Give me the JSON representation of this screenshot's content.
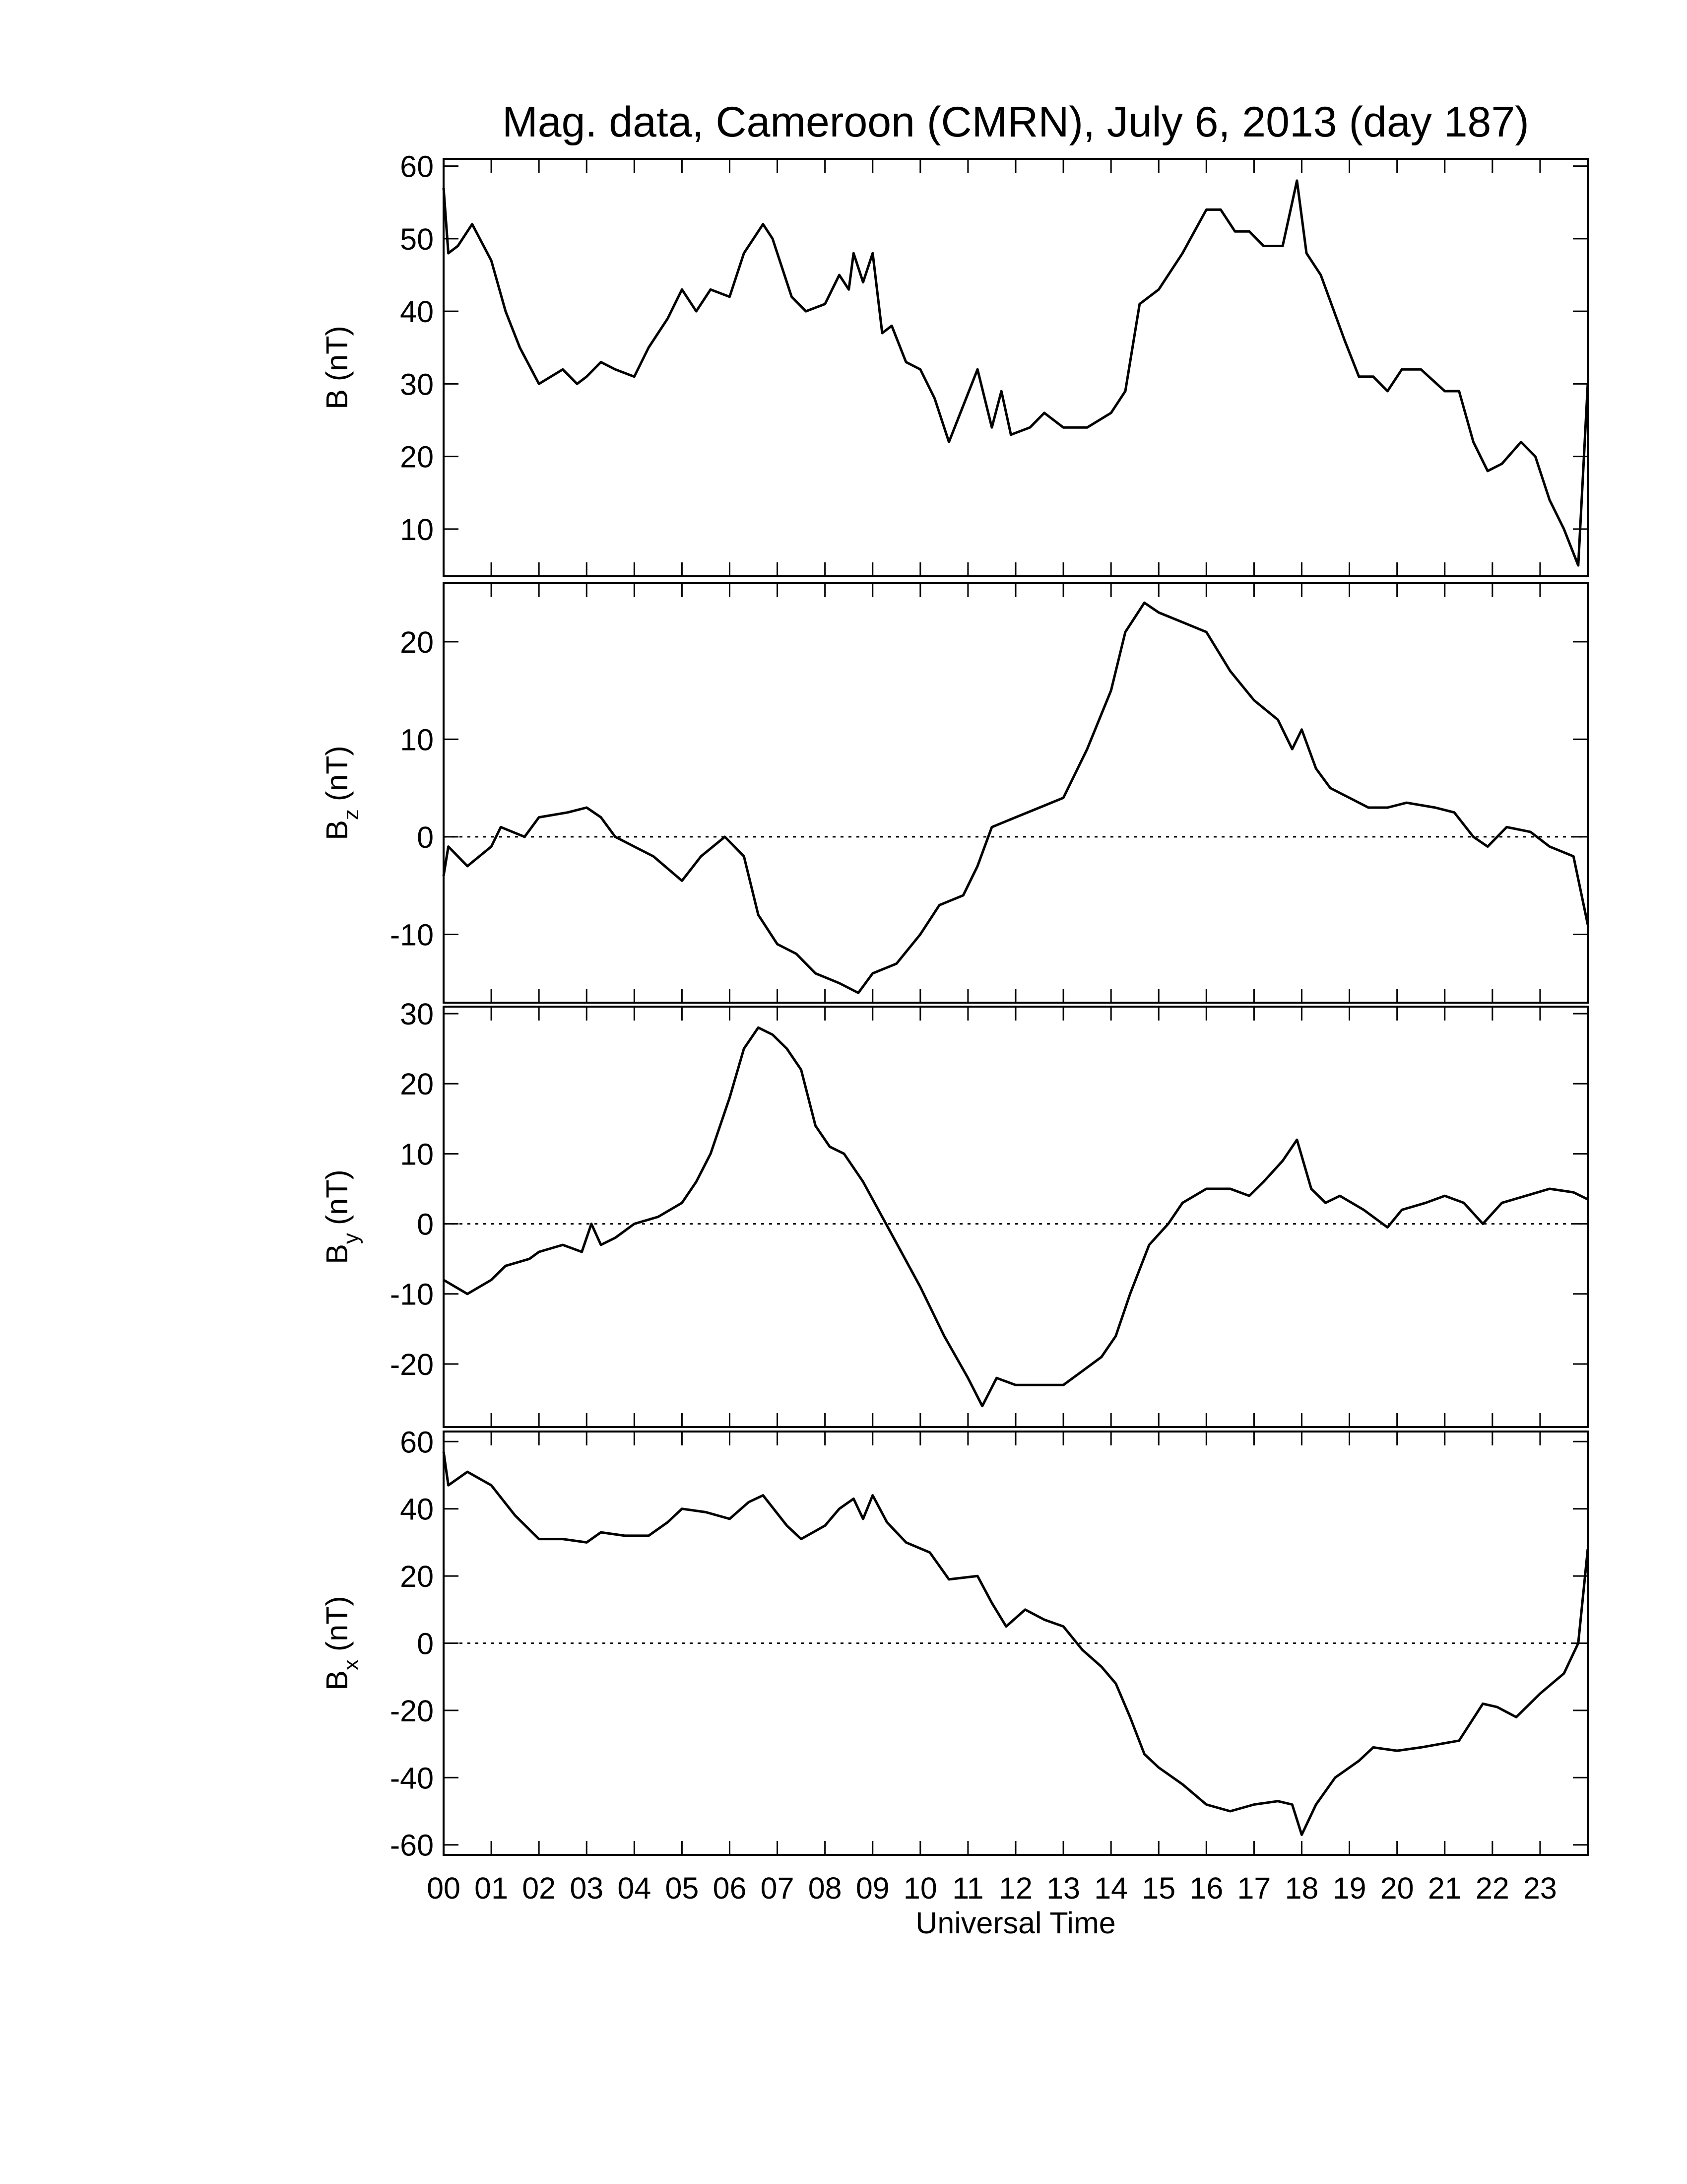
{
  "chart_data": [
    {
      "type": "line",
      "title": "Mag. data, Cameroon (CMRN), July 6, 2013 (day 187)",
      "ylabel": {
        "symbol": "B",
        "unit": "(nT)"
      },
      "xlim": [
        0,
        24
      ],
      "ylim": [
        3.5,
        61
      ],
      "yticks": [
        10,
        20,
        30,
        40,
        50,
        60
      ],
      "zero_line": false,
      "color": "#000000",
      "x": [
        0,
        0.1,
        0.3,
        0.6,
        1,
        1.3,
        1.6,
        2,
        2.5,
        2.8,
        3,
        3.3,
        3.6,
        4,
        4.3,
        4.7,
        5,
        5.3,
        5.6,
        6,
        6.3,
        6.7,
        6.9,
        7.3,
        7.6,
        8,
        8.3,
        8.5,
        8.6,
        8.8,
        9,
        9.2,
        9.4,
        9.7,
        10,
        10.3,
        10.6,
        10.9,
        11.2,
        11.5,
        11.7,
        11.9,
        12.3,
        12.6,
        13,
        13.5,
        14,
        14.3,
        14.6,
        15,
        15.5,
        16,
        16.3,
        16.6,
        16.9,
        17.2,
        17.6,
        17.8,
        17.9,
        18.1,
        18.4,
        18.9,
        19.2,
        19.5,
        19.8,
        20.1,
        20.5,
        21,
        21.3,
        21.6,
        21.9,
        22.2,
        22.6,
        22.9,
        23.2,
        23.5,
        23.8,
        24
      ],
      "values": [
        57,
        48,
        49,
        52,
        47,
        40,
        35,
        30,
        32,
        30,
        31,
        33,
        32,
        31,
        35,
        39,
        43,
        40,
        43,
        42,
        48,
        52,
        50,
        42,
        40,
        41,
        45,
        43,
        48,
        44,
        48,
        37,
        38,
        33,
        32,
        28,
        22,
        27,
        32,
        24,
        29,
        23,
        24,
        26,
        24,
        24,
        26,
        29,
        41,
        43,
        48,
        54,
        54,
        51,
        51,
        49,
        49,
        55,
        58,
        48,
        45,
        36,
        31,
        31,
        29,
        32,
        32,
        29,
        29,
        22,
        18,
        19,
        22,
        20,
        14,
        10,
        5,
        30
      ]
    },
    {
      "type": "line",
      "ylabel": {
        "symbol": "B",
        "subscript": "z",
        "unit": "(nT)"
      },
      "xlim": [
        0,
        24
      ],
      "ylim": [
        -17,
        26
      ],
      "yticks": [
        -10,
        0,
        10,
        20
      ],
      "zero_line": true,
      "color": "#000000",
      "x": [
        0,
        0.1,
        0.5,
        1,
        1.2,
        1.7,
        2,
        2.6,
        3,
        3.3,
        3.6,
        4,
        4.4,
        5,
        5.4,
        5.9,
        6.3,
        6.6,
        7,
        7.4,
        7.8,
        8.3,
        8.7,
        9,
        9.5,
        10,
        10.4,
        10.9,
        11.2,
        11.5,
        12,
        12.5,
        13,
        13.5,
        14,
        14.3,
        14.7,
        15,
        15.5,
        16,
        16.5,
        17,
        17.5,
        17.8,
        18,
        18.3,
        18.6,
        19,
        19.4,
        19.8,
        20.2,
        20.8,
        21.2,
        21.6,
        21.9,
        22.3,
        22.8,
        23.2,
        23.7,
        24
      ],
      "values": [
        -4,
        -1,
        -3,
        -1,
        1,
        0,
        2,
        2.5,
        3,
        2,
        0,
        -1,
        -2,
        -4.5,
        -2,
        0,
        -2,
        -8,
        -11,
        -12,
        -14,
        -15,
        -16,
        -14,
        -13,
        -10,
        -7,
        -6,
        -3,
        1,
        2,
        3,
        4,
        9,
        15,
        21,
        24,
        23,
        22,
        21,
        17,
        14,
        12,
        9,
        11,
        7,
        5,
        4,
        3,
        3,
        3.5,
        3,
        2.5,
        0,
        -1,
        1,
        0.5,
        -1,
        -2,
        -9
      ]
    },
    {
      "type": "line",
      "ylabel": {
        "symbol": "B",
        "subscript": "y",
        "unit": "(nT)"
      },
      "xlim": [
        0,
        24
      ],
      "ylim": [
        -29,
        31
      ],
      "yticks": [
        -20,
        -10,
        0,
        10,
        20,
        30
      ],
      "zero_line": true,
      "color": "#000000",
      "x": [
        0,
        0.5,
        1,
        1.3,
        1.8,
        2,
        2.5,
        2.9,
        3.1,
        3.3,
        3.6,
        4,
        4.5,
        5,
        5.3,
        5.6,
        6,
        6.3,
        6.6,
        6.9,
        7.2,
        7.5,
        7.8,
        8.1,
        8.4,
        8.8,
        9.2,
        9.6,
        10,
        10.5,
        11,
        11.3,
        11.6,
        12,
        12.5,
        13,
        13.4,
        13.8,
        14.1,
        14.4,
        14.8,
        15.2,
        15.5,
        16,
        16.5,
        16.9,
        17.2,
        17.6,
        17.9,
        18.2,
        18.5,
        18.8,
        19.3,
        19.8,
        20.1,
        20.6,
        21,
        21.4,
        21.8,
        22.2,
        22.7,
        23.2,
        23.7,
        24
      ],
      "values": [
        -8,
        -10,
        -8,
        -6,
        -5,
        -4,
        -3,
        -4,
        0,
        -3,
        -2,
        0,
        1,
        3,
        6,
        10,
        18,
        25,
        28,
        27,
        25,
        22,
        14,
        11,
        10,
        6,
        1,
        -4,
        -9,
        -16,
        -22,
        -26,
        -22,
        -23,
        -23,
        -23,
        -21,
        -19,
        -16,
        -10,
        -3,
        0,
        3,
        5,
        5,
        4,
        6,
        9,
        12,
        5,
        3,
        4,
        2,
        -0.5,
        2,
        3,
        4,
        3,
        0,
        3,
        4,
        5,
        4.5,
        3.5
      ]
    },
    {
      "type": "line",
      "ylabel": {
        "symbol": "B",
        "subscript": "x",
        "unit": "(nT)"
      },
      "xlabel": "Universal Time",
      "xlim": [
        0,
        24
      ],
      "ylim": [
        -63,
        63
      ],
      "yticks": [
        -60,
        -40,
        -20,
        0,
        20,
        40,
        60
      ],
      "zero_line": true,
      "color": "#000000",
      "xticks": [
        {
          "value": 0,
          "label": "00"
        },
        {
          "value": 1,
          "label": "01"
        },
        {
          "value": 2,
          "label": "02"
        },
        {
          "value": 3,
          "label": "03"
        },
        {
          "value": 4,
          "label": "04"
        },
        {
          "value": 5,
          "label": "05"
        },
        {
          "value": 6,
          "label": "06"
        },
        {
          "value": 7,
          "label": "07"
        },
        {
          "value": 8,
          "label": "08"
        },
        {
          "value": 9,
          "label": "09"
        },
        {
          "value": 10,
          "label": "10"
        },
        {
          "value": 11,
          "label": "11"
        },
        {
          "value": 12,
          "label": "12"
        },
        {
          "value": 13,
          "label": "13"
        },
        {
          "value": 14,
          "label": "14"
        },
        {
          "value": 15,
          "label": "15"
        },
        {
          "value": 16,
          "label": "16"
        },
        {
          "value": 17,
          "label": "17"
        },
        {
          "value": 18,
          "label": "18"
        },
        {
          "value": 19,
          "label": "19"
        },
        {
          "value": 20,
          "label": "20"
        },
        {
          "value": 21,
          "label": "21"
        },
        {
          "value": 22,
          "label": "22"
        },
        {
          "value": 23,
          "label": "23"
        }
      ],
      "x": [
        0,
        0.1,
        0.5,
        1,
        1.5,
        2,
        2.5,
        3,
        3.3,
        3.8,
        4.3,
        4.7,
        5,
        5.5,
        6,
        6.4,
        6.7,
        7.2,
        7.5,
        8,
        8.3,
        8.6,
        8.8,
        9,
        9.3,
        9.7,
        10.2,
        10.6,
        11.2,
        11.5,
        11.8,
        12.2,
        12.6,
        13,
        13.4,
        13.8,
        14.1,
        14.4,
        14.7,
        15,
        15.5,
        16,
        16.5,
        17,
        17.5,
        17.8,
        18,
        18.3,
        18.7,
        19.2,
        19.5,
        20,
        20.5,
        21.3,
        21.8,
        22.1,
        22.5,
        23,
        23.5,
        23.8,
        24
      ],
      "values": [
        57,
        47,
        51,
        47,
        38,
        31,
        31,
        30,
        33,
        32,
        32,
        36,
        40,
        39,
        37,
        42,
        44,
        35,
        31,
        35,
        40,
        43,
        37,
        44,
        36,
        30,
        27,
        19,
        20,
        12,
        5,
        10,
        7,
        5,
        -2,
        -7,
        -12,
        -22,
        -33,
        -37,
        -42,
        -48,
        -50,
        -48,
        -47,
        -48,
        -57,
        -48,
        -40,
        -35,
        -31,
        -32,
        -31,
        -29,
        -18,
        -19,
        -22,
        -15,
        -9,
        0,
        28
      ]
    }
  ]
}
